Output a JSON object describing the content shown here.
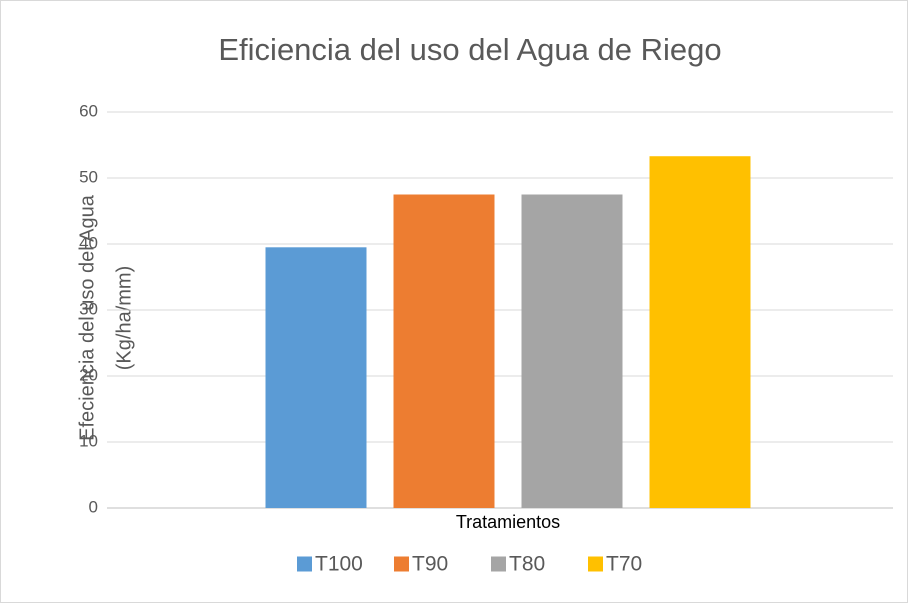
{
  "chart_data": {
    "type": "bar",
    "title": "Eficiencia del uso del Agua de Riego",
    "ylabel": [
      "Efeciencia del uso del Agua",
      "(Kg/ha/mm)"
    ],
    "categories": [
      "Tratamientos"
    ],
    "series": [
      {
        "name": "T100",
        "color": "#5b9bd5",
        "values": [
          39.5
        ]
      },
      {
        "name": "T90",
        "color": "#ed7d31",
        "values": [
          47.5
        ]
      },
      {
        "name": "T80",
        "color": "#a5a5a5",
        "values": [
          47.5
        ]
      },
      {
        "name": "T70",
        "color": "#ffc000",
        "values": [
          53.3
        ]
      }
    ],
    "ylim": [
      0,
      60
    ],
    "yticks": [
      0,
      10,
      20,
      30,
      40,
      50,
      60
    ],
    "grid": true,
    "legend": "bottom"
  }
}
